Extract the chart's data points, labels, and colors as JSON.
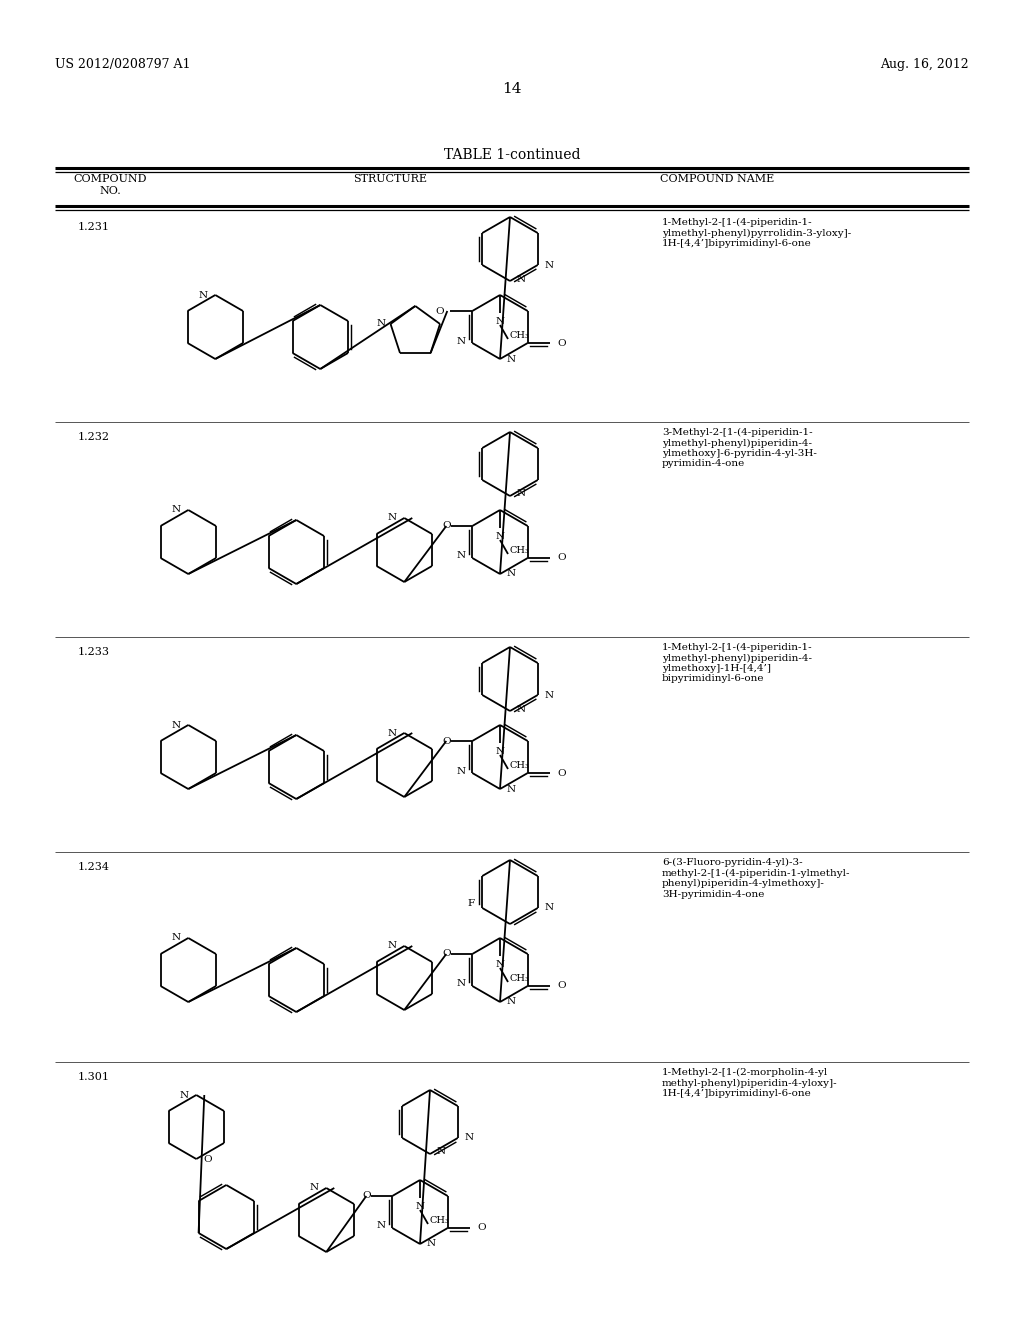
{
  "bg_color": "#ffffff",
  "header_left": "US 2012/0208797 A1",
  "header_right": "Aug. 16, 2012",
  "page_number": "14",
  "table_title": "TABLE 1-continued",
  "col1_header": "COMPOUND\nNO.",
  "col2_header": "STRUCTURE",
  "col3_header": "COMPOUND NAME",
  "compounds": [
    {
      "no": "1.231",
      "name": "1-Methyl-2-[1-(4-piperidin-1-\nylmethyl-phenyl)pyrrolidin-3-yloxy]-\n1H-[4,4’]bipyrimidinyl-6-one"
    },
    {
      "no": "1.232",
      "name": "3-Methyl-2-[1-(4-piperidin-1-\nylmethyl-phenyl)piperidin-4-\nylmethoxy]-6-pyridin-4-yl-3H-\npyrimidin-4-one"
    },
    {
      "no": "1.233",
      "name": "1-Methyl-2-[1-(4-piperidin-1-\nylmethyl-phenyl)piperidin-4-\nylmethoxy]-1H-[4,4’]\nbipyrimidinyl-6-one"
    },
    {
      "no": "1.234",
      "name": "6-(3-Fluoro-pyridin-4-yl)-3-\nmethyl-2-[1-(4-piperidin-1-ylmethyl-\nphenyl)piperidin-4-ylmethoxy]-\n3H-pyrimidin-4-one"
    },
    {
      "no": "1.301",
      "name": "1-Methyl-2-[1-(2-morpholin-4-yl\nmethyl-phenyl)piperidin-4-yloxy]-\n1H-[4,4’]bipyrimidinyl-6-one"
    }
  ]
}
